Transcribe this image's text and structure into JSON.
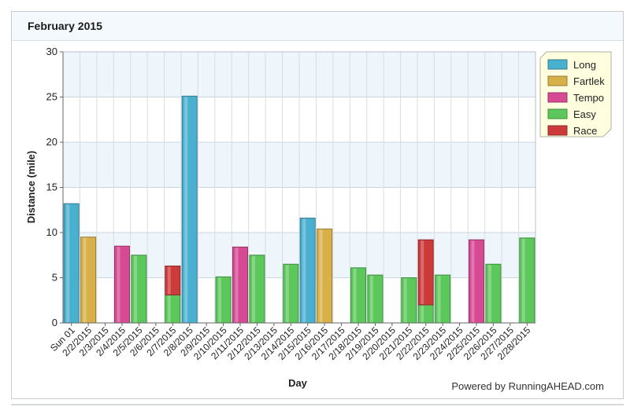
{
  "panel": {
    "title": "February 2015"
  },
  "colors": {
    "Long": "#4ab0d0",
    "Fartlek": "#d8b04a",
    "Tempo": "#d64a94",
    "Easy": "#5cc85c",
    "Race": "#cc3a3a"
  },
  "chart_data": {
    "type": "bar",
    "stacked": true,
    "xlabel": "Day",
    "ylabel": "Distance (mile)",
    "ylim": [
      0,
      30
    ],
    "yticks": [
      0,
      5,
      10,
      15,
      20,
      25,
      30
    ],
    "grid": true,
    "legend_position": "top-right",
    "categories": [
      "Sun 01",
      "2/2/2015",
      "2/3/2015",
      "2/4/2015",
      "2/5/2015",
      "2/6/2015",
      "2/7/2015",
      "2/8/2015",
      "2/9/2015",
      "2/10/2015",
      "2/11/2015",
      "2/12/2015",
      "2/13/2015",
      "2/14/2015",
      "2/15/2015",
      "2/16/2015",
      "2/17/2015",
      "2/18/2015",
      "2/19/2015",
      "2/20/2015",
      "2/21/2015",
      "2/22/2015",
      "2/23/2015",
      "2/24/2015",
      "2/25/2015",
      "2/26/2015",
      "2/27/2015",
      "2/28/2015"
    ],
    "series": [
      {
        "name": "Long",
        "values": [
          13.2,
          0,
          0,
          0,
          0,
          0,
          0,
          25.1,
          0,
          0,
          0,
          0,
          0,
          0,
          11.6,
          0,
          0,
          0,
          0,
          0,
          0,
          0,
          0,
          0,
          0,
          0,
          0,
          0
        ]
      },
      {
        "name": "Fartlek",
        "values": [
          0,
          9.5,
          0,
          0,
          0,
          0,
          0,
          0,
          0,
          0,
          0,
          0,
          0,
          0,
          0,
          10.4,
          0,
          0,
          0,
          0,
          0,
          0,
          0,
          0,
          0,
          0,
          0,
          0
        ]
      },
      {
        "name": "Tempo",
        "values": [
          0,
          0,
          0,
          8.5,
          0,
          0,
          0,
          0,
          0,
          0,
          8.4,
          0,
          0,
          0,
          0,
          0,
          0,
          0,
          0,
          0,
          0,
          0,
          0,
          0,
          9.2,
          0,
          0,
          0
        ]
      },
      {
        "name": "Easy",
        "values": [
          0,
          0,
          0,
          0,
          7.5,
          0,
          3.1,
          0,
          0,
          5.1,
          0,
          7.5,
          0,
          6.5,
          0,
          0,
          0,
          6.1,
          5.3,
          0,
          5.0,
          2.0,
          5.3,
          0,
          0,
          6.5,
          0,
          9.4
        ]
      },
      {
        "name": "Race",
        "values": [
          0,
          0,
          0,
          0,
          0,
          0,
          3.2,
          0,
          0,
          0,
          0,
          0,
          0,
          0,
          0,
          0,
          0,
          0,
          0,
          0,
          0,
          7.2,
          0,
          0,
          0,
          0,
          0,
          0
        ]
      }
    ],
    "legend": [
      "Long",
      "Fartlek",
      "Tempo",
      "Easy",
      "Race"
    ],
    "credit": "Powered by RunningAHEAD.com"
  }
}
